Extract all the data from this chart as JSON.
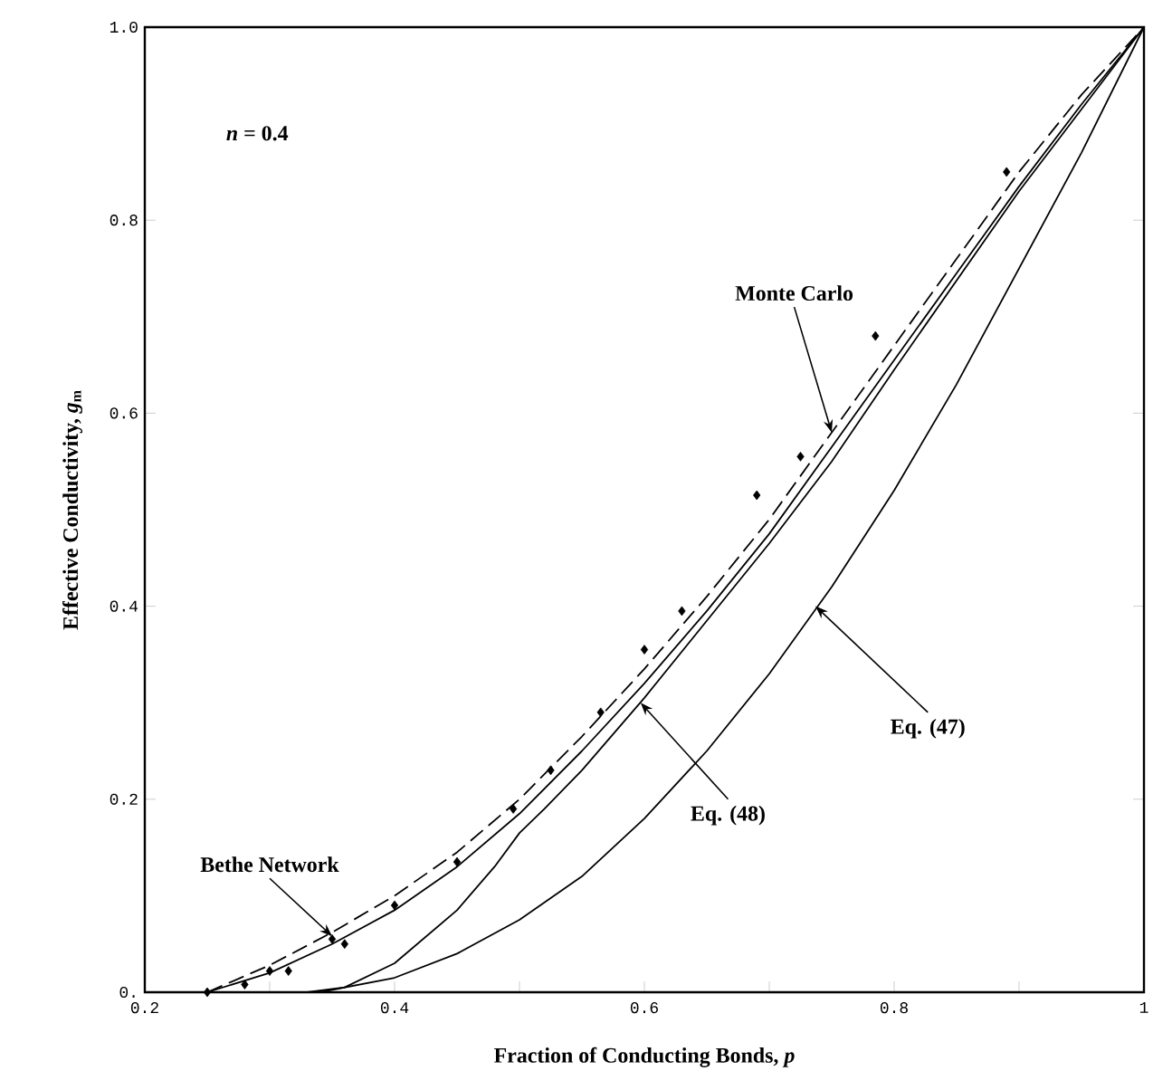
{
  "chart_data": {
    "type": "line",
    "xlabel": "Fraction of Conducting Bonds, *p*",
    "ylabel": "Effective Conductivity, *g*$_{m}$",
    "xlim": [
      0.2,
      1.0
    ],
    "ylim": [
      0,
      1.0
    ],
    "xticks": [
      0.2,
      {
        "value": 0.3,
        "label": null
      },
      0.4,
      {
        "value": 0.5,
        "label": null
      },
      0.6,
      {
        "value": 0.7,
        "label": null
      },
      0.8,
      {
        "value": 0.9,
        "label": null
      },
      1
    ],
    "yticks": [
      {
        "value": 0,
        "label": "0."
      },
      0.2,
      0.4,
      0.6,
      0.8,
      {
        "value": 1.0,
        "label": "1.0"
      }
    ],
    "grid": false,
    "series": [
      {
        "type": "scatter",
        "marker": "diamond",
        "color": "#000000",
        "x": [
          0.25,
          0.28,
          0.3,
          0.315,
          0.35,
          0.36,
          0.4,
          0.45,
          0.495,
          0.525,
          0.565,
          0.6,
          0.63,
          0.69,
          0.725,
          0.785,
          0.89
        ],
        "values": [
          0.0,
          0.008,
          0.022,
          0.022,
          0.055,
          0.05,
          0.09,
          0.135,
          0.19,
          0.23,
          0.29,
          0.355,
          0.395,
          0.515,
          0.555,
          0.68,
          0.85
        ]
      },
      {
        "line_style": "dashed",
        "color": "#000000",
        "x": [
          0.25,
          0.3,
          0.35,
          0.4,
          0.45,
          0.5,
          0.55,
          0.6,
          0.65,
          0.7,
          0.75,
          0.8,
          0.85,
          0.9,
          0.95,
          1.0
        ],
        "values": [
          0.0,
          0.028,
          0.062,
          0.1,
          0.145,
          0.2,
          0.265,
          0.335,
          0.41,
          0.49,
          0.58,
          0.67,
          0.76,
          0.85,
          0.93,
          1.0
        ]
      },
      {
        "line_style": "solid",
        "color": "#000000",
        "x": [
          0.25,
          0.3,
          0.35,
          0.4,
          0.45,
          0.5,
          0.55,
          0.6,
          0.65,
          0.7,
          0.75,
          0.8,
          0.85,
          0.9,
          0.95,
          1.0
        ],
        "values": [
          0.0,
          0.02,
          0.05,
          0.085,
          0.13,
          0.185,
          0.25,
          0.32,
          0.395,
          0.475,
          0.565,
          0.655,
          0.745,
          0.835,
          0.92,
          1.0
        ]
      },
      {
        "line_style": "solid",
        "color": "#000000",
        "x": [
          0.33,
          0.36,
          0.4,
          0.45,
          0.48,
          0.5,
          0.52,
          0.55,
          0.6,
          0.65,
          0.7,
          0.75,
          0.8,
          0.9,
          1.0
        ],
        "values": [
          0.0,
          0.005,
          0.03,
          0.085,
          0.13,
          0.165,
          0.19,
          0.23,
          0.305,
          0.385,
          0.465,
          0.55,
          0.645,
          0.83,
          1.0
        ]
      },
      {
        "line_style": "solid",
        "color": "#000000",
        "x": [
          0.34,
          0.4,
          0.45,
          0.5,
          0.55,
          0.6,
          0.65,
          0.7,
          0.75,
          0.8,
          0.85,
          0.9,
          0.95,
          1.0
        ],
        "values": [
          0.0,
          0.015,
          0.04,
          0.075,
          0.12,
          0.18,
          0.25,
          0.33,
          0.42,
          0.52,
          0.63,
          0.75,
          0.87,
          1.0
        ]
      }
    ],
    "annotations": [
      "*n* = 0.4",
      {
        "text": "Monte Carlo",
        "x": 0.75,
        "y": 0.58
      },
      {
        "text": "Bethe Network",
        "x": 0.35,
        "y": 0.058
      },
      {
        "text": "Eq. (48)",
        "x": 0.597,
        "y": 0.3
      },
      {
        "text": "Eq. (47)",
        "x": 0.737,
        "y": 0.4
      }
    ]
  }
}
